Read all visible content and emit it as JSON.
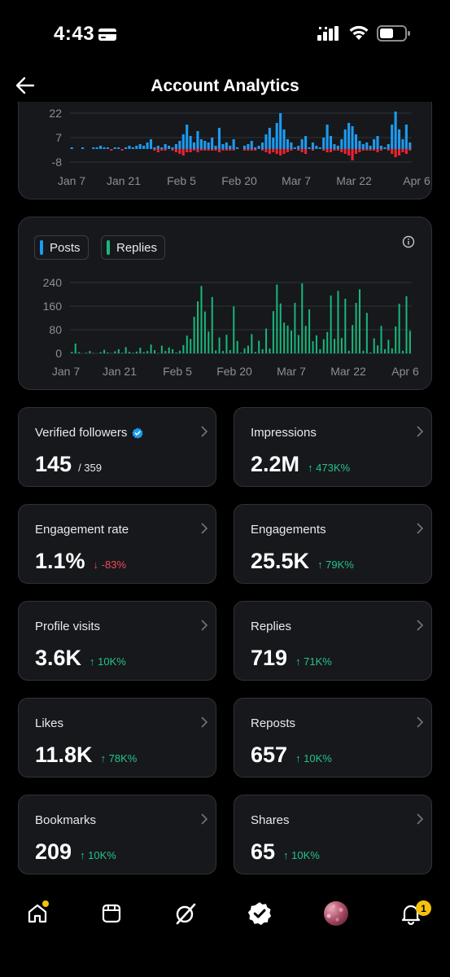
{
  "status_bar": {
    "time": "4:43"
  },
  "header": {
    "title": "Account Analytics"
  },
  "chart_data": [
    {
      "type": "bar",
      "ylim": [
        -8,
        22
      ],
      "yticks": [
        "22",
        "7",
        "-8"
      ],
      "xticks": [
        "Jan 7",
        "Jan 21",
        "Feb 5",
        "Feb 20",
        "Mar 7",
        "Mar 22",
        "Apr 6"
      ],
      "series": [
        {
          "color": "#1d9bf0",
          "values": [
            1,
            0,
            0,
            1,
            0,
            0,
            1,
            1,
            2,
            1,
            1,
            0,
            1,
            1,
            0,
            1,
            2,
            1,
            2,
            3,
            2,
            4,
            6,
            1,
            2,
            1,
            3,
            2,
            1,
            3,
            5,
            9,
            15,
            8,
            4,
            11,
            6,
            5,
            4,
            7,
            2,
            13,
            3,
            4,
            2,
            6,
            1,
            0,
            2,
            3,
            5,
            1,
            2,
            4,
            9,
            13,
            7,
            16,
            22,
            12,
            6,
            4,
            1,
            2,
            6,
            8,
            1,
            4,
            2,
            1,
            7,
            15,
            8,
            3,
            2,
            6,
            12,
            16,
            14,
            9,
            5,
            3,
            4,
            2,
            6,
            8,
            2,
            1,
            3,
            15,
            23,
            12,
            6,
            15,
            4
          ]
        },
        {
          "color": "#f4212e",
          "values": [
            0,
            0,
            0,
            0,
            0,
            0,
            0,
            0,
            0,
            0,
            0,
            -1,
            0,
            0,
            -1,
            0,
            0,
            0,
            0,
            0,
            0,
            0,
            0,
            -1,
            -2,
            -1,
            -1,
            0,
            -1,
            -2,
            -3,
            -4,
            -2,
            -2,
            -1,
            -2,
            -1,
            -1,
            -1,
            -1,
            -1,
            -2,
            -1,
            -1,
            -1,
            -1,
            0,
            0,
            -1,
            -1,
            -1,
            -1,
            0,
            -1,
            -2,
            -3,
            -2,
            -3,
            -4,
            -3,
            -2,
            -1,
            0,
            -1,
            -2,
            -3,
            0,
            -1,
            0,
            0,
            -1,
            -2,
            -2,
            -1,
            -1,
            -2,
            -3,
            -4,
            -7,
            -3,
            -2,
            -1,
            -1,
            -1,
            -1,
            -2,
            -1,
            0,
            -1,
            -3,
            -5,
            -4,
            -2,
            -3,
            -1
          ]
        }
      ]
    },
    {
      "type": "bar",
      "ylim": [
        0,
        240
      ],
      "yticks": [
        "240",
        "160",
        "80",
        "0"
      ],
      "xticks": [
        "Jan 7",
        "Jan 21",
        "Feb 5",
        "Feb 20",
        "Mar 7",
        "Mar 22",
        "Apr 6"
      ],
      "legend": [
        "Posts",
        "Replies"
      ],
      "series": [
        {
          "name": "Replies",
          "color": "#18b87a",
          "values": [
            5,
            33,
            4,
            0,
            2,
            8,
            1,
            0,
            4,
            12,
            3,
            1,
            7,
            14,
            2,
            21,
            5,
            2,
            6,
            19,
            4,
            8,
            30,
            11,
            1,
            26,
            8,
            20,
            14,
            3,
            9,
            28,
            60,
            49,
            124,
            176,
            228,
            142,
            74,
            191,
            10,
            54,
            8,
            63,
            11,
            159,
            42,
            2,
            17,
            26,
            65,
            5,
            43,
            14,
            84,
            16,
            143,
            233,
            169,
            104,
            94,
            77,
            171,
            62,
            237,
            93,
            149,
            41,
            61,
            14,
            48,
            72,
            196,
            49,
            212,
            52,
            185,
            9,
            96,
            171,
            217,
            9,
            137,
            3,
            51,
            27,
            93,
            14,
            46,
            17,
            91,
            168,
            9,
            194,
            76
          ]
        }
      ]
    }
  ],
  "chart_legend": {
    "posts_label": "Posts",
    "replies_label": "Replies",
    "posts_color": "#1d9bf0",
    "replies_color": "#18b87a"
  },
  "metrics": {
    "verified_followers": {
      "label": "Verified followers",
      "value": "145",
      "sub": "/ 359"
    },
    "impressions": {
      "label": "Impressions",
      "value": "2.2M",
      "delta": "↑ 473K%"
    },
    "engagement_rate": {
      "label": "Engagement rate",
      "value": "1.1%",
      "delta": "↓ -83%"
    },
    "engagements": {
      "label": "Engagements",
      "value": "25.5K",
      "delta": "↑ 79K%"
    },
    "profile_visits": {
      "label": "Profile visits",
      "value": "3.6K",
      "delta": "↑ 10K%"
    },
    "replies": {
      "label": "Replies",
      "value": "719",
      "delta": "↑ 71K%"
    },
    "likes": {
      "label": "Likes",
      "value": "11.8K",
      "delta": "↑ 78K%"
    },
    "reposts": {
      "label": "Reposts",
      "value": "657",
      "delta": "↑ 10K%"
    },
    "bookmarks": {
      "label": "Bookmarks",
      "value": "209",
      "delta": "↑ 10K%"
    },
    "shares": {
      "label": "Shares",
      "value": "65",
      "delta": "↑ 10K%"
    }
  },
  "bottom_nav": {
    "icons": [
      "home-icon",
      "communities-icon",
      "grok-icon",
      "verified-icon",
      "profile-avatar",
      "notifications-icon"
    ],
    "notification_count": "1"
  },
  "colors": {
    "positive": "#25c28a",
    "negative": "#f4485b",
    "card_bg": "#16181c",
    "accent_yellow": "#f5c20b"
  }
}
